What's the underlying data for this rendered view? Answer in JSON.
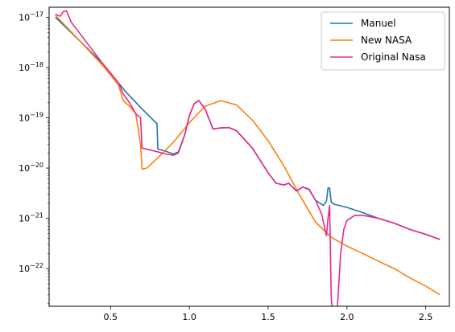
{
  "chart_data": {
    "type": "line",
    "title": "",
    "xlabel": "",
    "ylabel": "",
    "xlim": [
      0.11,
      2.65
    ],
    "ylim_log10": [
      -22.75,
      -16.8
    ],
    "yscale": "log",
    "grid": false,
    "legend_position": "top-right",
    "x_ticks": [
      {
        "value": 0.5,
        "label": "0.5"
      },
      {
        "value": 1.0,
        "label": "1.0"
      },
      {
        "value": 1.5,
        "label": "1.5"
      },
      {
        "value": 2.0,
        "label": "2.0"
      },
      {
        "value": 2.5,
        "label": "2.5"
      }
    ],
    "y_ticks": [
      {
        "exp": -17,
        "label_base": "10",
        "label_exp": "−17"
      },
      {
        "exp": -18,
        "label_base": "10",
        "label_exp": "−18"
      },
      {
        "exp": -19,
        "label_base": "10",
        "label_exp": "−19"
      },
      {
        "exp": -20,
        "label_base": "10",
        "label_exp": "−20"
      },
      {
        "exp": -21,
        "label_base": "10",
        "label_exp": "−21"
      },
      {
        "exp": -22,
        "label_base": "10",
        "label_exp": "−22"
      }
    ],
    "series": [
      {
        "name": "Manuel",
        "color": "#1f77b4",
        "points": [
          [
            0.15,
            1e-17
          ],
          [
            0.3,
            3.5e-18
          ],
          [
            0.45,
            1.2e-18
          ],
          [
            0.6,
            3.2e-19
          ],
          [
            0.7,
            1.5e-19
          ],
          [
            0.795,
            7.6e-20
          ],
          [
            0.8,
            2.4e-20
          ],
          [
            0.85,
            2.15e-20
          ],
          [
            0.9,
            1.9e-20
          ],
          [
            0.93,
            2.1e-20
          ],
          [
            0.97,
            4.5e-20
          ],
          [
            1.0,
            1.1e-19
          ],
          [
            1.03,
            1.9e-19
          ],
          [
            1.06,
            2.2e-19
          ],
          [
            1.1,
            1.5e-19
          ],
          [
            1.15,
            6e-20
          ],
          [
            1.2,
            6.3e-20
          ],
          [
            1.25,
            6.4e-20
          ],
          [
            1.3,
            5.5e-20
          ],
          [
            1.4,
            2.5e-20
          ],
          [
            1.5,
            8e-21
          ],
          [
            1.55,
            5e-21
          ],
          [
            1.6,
            4.6e-21
          ],
          [
            1.63,
            5e-21
          ],
          [
            1.65,
            4.3e-21
          ],
          [
            1.68,
            3.5e-21
          ],
          [
            1.72,
            4.2e-21
          ],
          [
            1.76,
            3.8e-21
          ],
          [
            1.8,
            2.3e-21
          ],
          [
            1.85,
            1.8e-21
          ],
          [
            1.87,
            2.2e-21
          ],
          [
            1.88,
            4e-21
          ],
          [
            1.89,
            4e-21
          ],
          [
            1.9,
            2.1e-21
          ],
          [
            1.92,
            1.9e-21
          ],
          [
            2.0,
            1.65e-21
          ],
          [
            2.1,
            1.3e-21
          ],
          [
            2.2,
            1e-21
          ],
          [
            2.3,
            8e-22
          ],
          [
            2.4,
            6e-22
          ],
          [
            2.5,
            4.8e-22
          ],
          [
            2.59,
            3.8e-22
          ]
        ]
      },
      {
        "name": "New NASA",
        "color": "#ff7f0e",
        "points": [
          [
            0.15,
            1.1e-17
          ],
          [
            0.3,
            3.5e-18
          ],
          [
            0.45,
            1.1e-18
          ],
          [
            0.55,
            4.5e-19
          ],
          [
            0.58,
            2.2e-19
          ],
          [
            0.62,
            1.7e-19
          ],
          [
            0.66,
            1.2e-19
          ],
          [
            0.69,
            3e-20
          ],
          [
            0.7,
            9.5e-21
          ],
          [
            0.73,
            1e-20
          ],
          [
            0.8,
            1.6e-20
          ],
          [
            0.9,
            3.3e-20
          ],
          [
            1.0,
            8e-20
          ],
          [
            1.1,
            1.7e-19
          ],
          [
            1.2,
            2.2e-19
          ],
          [
            1.3,
            1.8e-19
          ],
          [
            1.4,
            9e-20
          ],
          [
            1.5,
            3.5e-20
          ],
          [
            1.6,
            1.1e-20
          ],
          [
            1.7,
            2.9e-21
          ],
          [
            1.8,
            8.5e-22
          ],
          [
            1.9,
            4.2e-22
          ],
          [
            2.0,
            2.8e-22
          ],
          [
            2.1,
            2e-22
          ],
          [
            2.2,
            1.4e-22
          ],
          [
            2.3,
            1e-22
          ],
          [
            2.4,
            6.5e-23
          ],
          [
            2.5,
            4.5e-23
          ],
          [
            2.59,
            3e-23
          ]
        ]
      },
      {
        "name": "Original Nasa",
        "color": "#e7298a",
        "points": [
          [
            0.15,
            1.15e-17
          ],
          [
            0.18,
            1.05e-17
          ],
          [
            0.2,
            1.3e-17
          ],
          [
            0.22,
            1.35e-17
          ],
          [
            0.25,
            8e-18
          ],
          [
            0.3,
            5e-18
          ],
          [
            0.45,
            1.2e-18
          ],
          [
            0.55,
            5e-19
          ],
          [
            0.58,
            3e-19
          ],
          [
            0.62,
            2e-19
          ],
          [
            0.66,
            1.2e-19
          ],
          [
            0.69,
            1e-19
          ],
          [
            0.7,
            2.5e-20
          ],
          [
            0.8,
            2.1e-20
          ],
          [
            0.85,
            1.9e-20
          ],
          [
            0.9,
            1.8e-20
          ],
          [
            0.93,
            2e-20
          ],
          [
            0.97,
            4.5e-20
          ],
          [
            1.0,
            1.1e-19
          ],
          [
            1.03,
            1.9e-19
          ],
          [
            1.06,
            2.2e-19
          ],
          [
            1.1,
            1.5e-19
          ],
          [
            1.15,
            6e-20
          ],
          [
            1.2,
            6.3e-20
          ],
          [
            1.25,
            6.4e-20
          ],
          [
            1.3,
            5.5e-20
          ],
          [
            1.4,
            2.5e-20
          ],
          [
            1.5,
            8e-21
          ],
          [
            1.55,
            5e-21
          ],
          [
            1.6,
            4.6e-21
          ],
          [
            1.63,
            5e-21
          ],
          [
            1.65,
            4.3e-21
          ],
          [
            1.68,
            3.5e-21
          ],
          [
            1.72,
            4.2e-21
          ],
          [
            1.76,
            3.7e-21
          ],
          [
            1.8,
            2.3e-21
          ],
          [
            1.84,
            1.2e-21
          ],
          [
            1.87,
            4.5e-22
          ],
          [
            1.88,
            1e-21
          ],
          [
            1.89,
            1.8e-21
          ],
          [
            1.9,
            3e-23
          ],
          [
            1.91,
            1e-23
          ],
          [
            1.93,
            1e-23
          ],
          [
            1.94,
            1.8e-23
          ],
          [
            1.96,
            2e-22
          ],
          [
            1.98,
            6e-22
          ],
          [
            2.0,
            9e-22
          ],
          [
            2.05,
            1.15e-21
          ],
          [
            2.1,
            1.15e-21
          ],
          [
            2.2,
            1e-21
          ],
          [
            2.3,
            8e-22
          ],
          [
            2.4,
            6e-22
          ],
          [
            2.5,
            4.8e-22
          ],
          [
            2.59,
            3.8e-22
          ]
        ]
      }
    ]
  }
}
